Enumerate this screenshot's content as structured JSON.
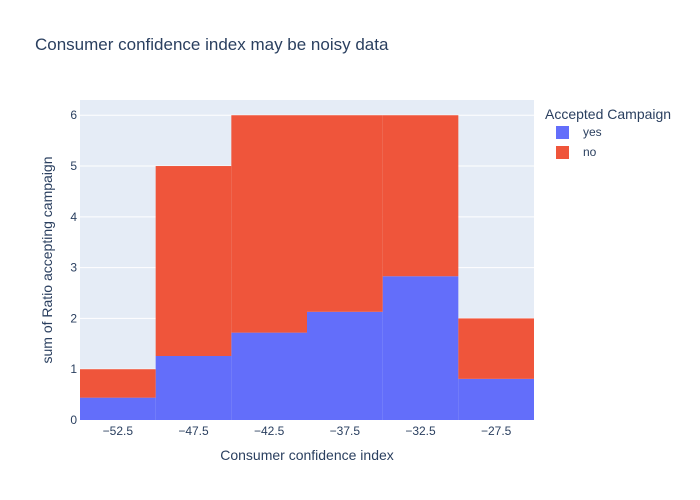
{
  "chart_data": {
    "type": "bar",
    "title": "Consumer confidence index may be noisy data",
    "xlabel": "Consumer confidence index",
    "ylabel": "sum of Ratio accepting campaign",
    "legend_title": "Accepted Campaign",
    "legend_position": "right",
    "barmode": "stack",
    "bin_edges": [
      -55,
      -50,
      -45,
      -40,
      -35,
      -30,
      -25
    ],
    "xlim": [
      -55,
      -25
    ],
    "ylim": [
      0,
      6.3
    ],
    "x_ticks": [
      -52.5,
      -47.5,
      -42.5,
      -37.5,
      -32.5,
      -27.5
    ],
    "x_tick_labels": [
      "−52.5",
      "−47.5",
      "−42.5",
      "−37.5",
      "−32.5",
      "−27.5"
    ],
    "y_ticks": [
      0,
      1,
      2,
      3,
      4,
      5,
      6
    ],
    "y_tick_labels": [
      "0",
      "1",
      "2",
      "3",
      "4",
      "5",
      "6"
    ],
    "grid": true,
    "series": [
      {
        "name": "yes",
        "color": "#636efa",
        "values": [
          0.44,
          1.26,
          1.72,
          2.13,
          2.83,
          0.81
        ]
      },
      {
        "name": "no",
        "color": "#ef553b",
        "values": [
          0.56,
          3.74,
          4.28,
          3.87,
          3.17,
          1.19
        ]
      }
    ],
    "background_color": "#e5ecf6"
  }
}
